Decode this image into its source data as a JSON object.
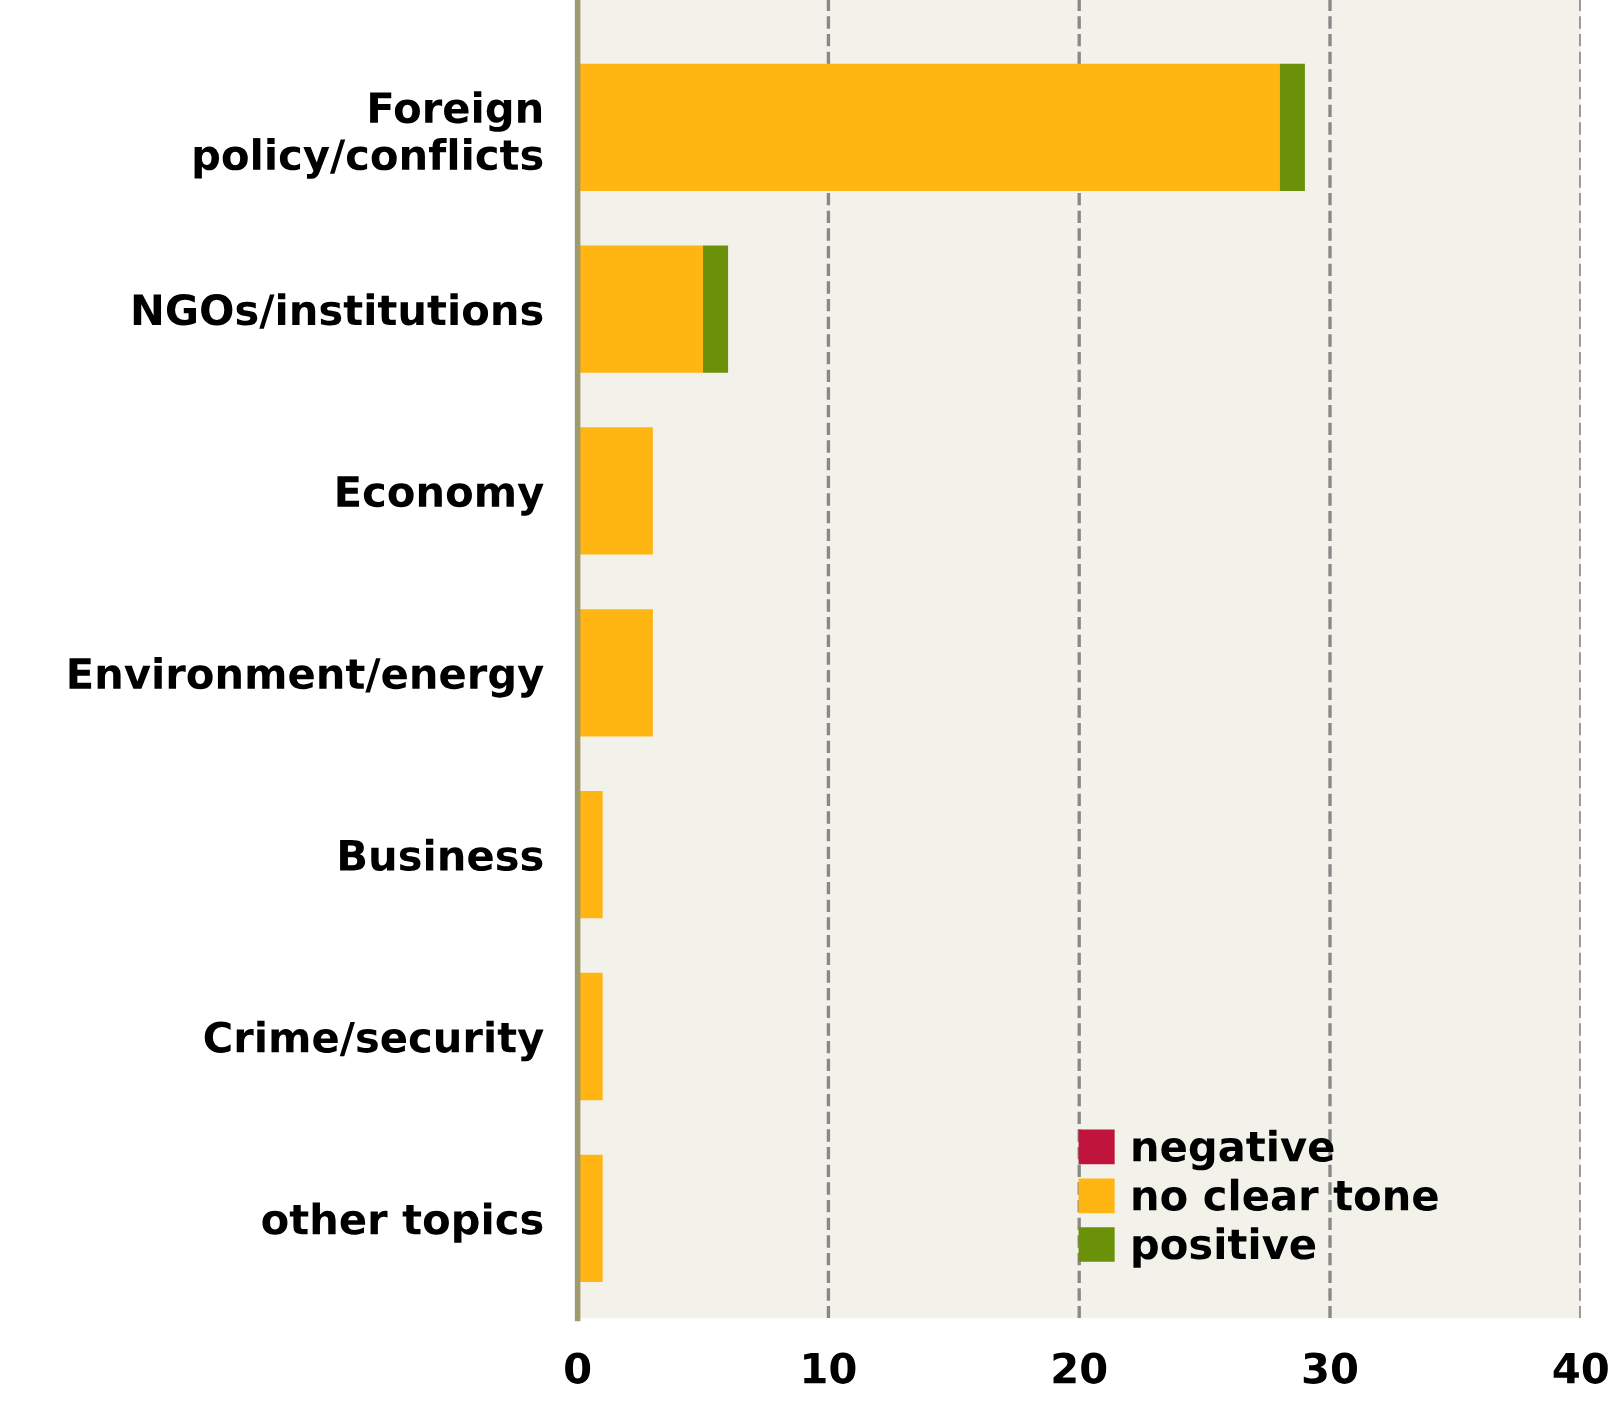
{
  "chart_data": {
    "type": "bar",
    "orientation": "horizontal",
    "stacked": true,
    "categories": [
      "Foreign\npolicy/conflicts",
      "NGOs/institutions",
      "Economy",
      "Environment/energy",
      "Business",
      "Crime/security",
      "other topics"
    ],
    "series": [
      {
        "name": "negative",
        "color": "#c0143c",
        "values": [
          0,
          0,
          0,
          0,
          0,
          0,
          0
        ]
      },
      {
        "name": "no clear tone",
        "color": "#ffb612",
        "values": [
          28,
          5,
          3,
          3,
          1,
          1,
          1
        ]
      },
      {
        "name": "positive",
        "color": "#6b9108",
        "values": [
          1,
          1,
          0,
          0,
          0,
          0,
          0
        ]
      }
    ],
    "xlim": [
      0,
      40
    ],
    "xticks": [
      0,
      10,
      20,
      30,
      40
    ],
    "grid": "x",
    "legend": "bottom right"
  }
}
